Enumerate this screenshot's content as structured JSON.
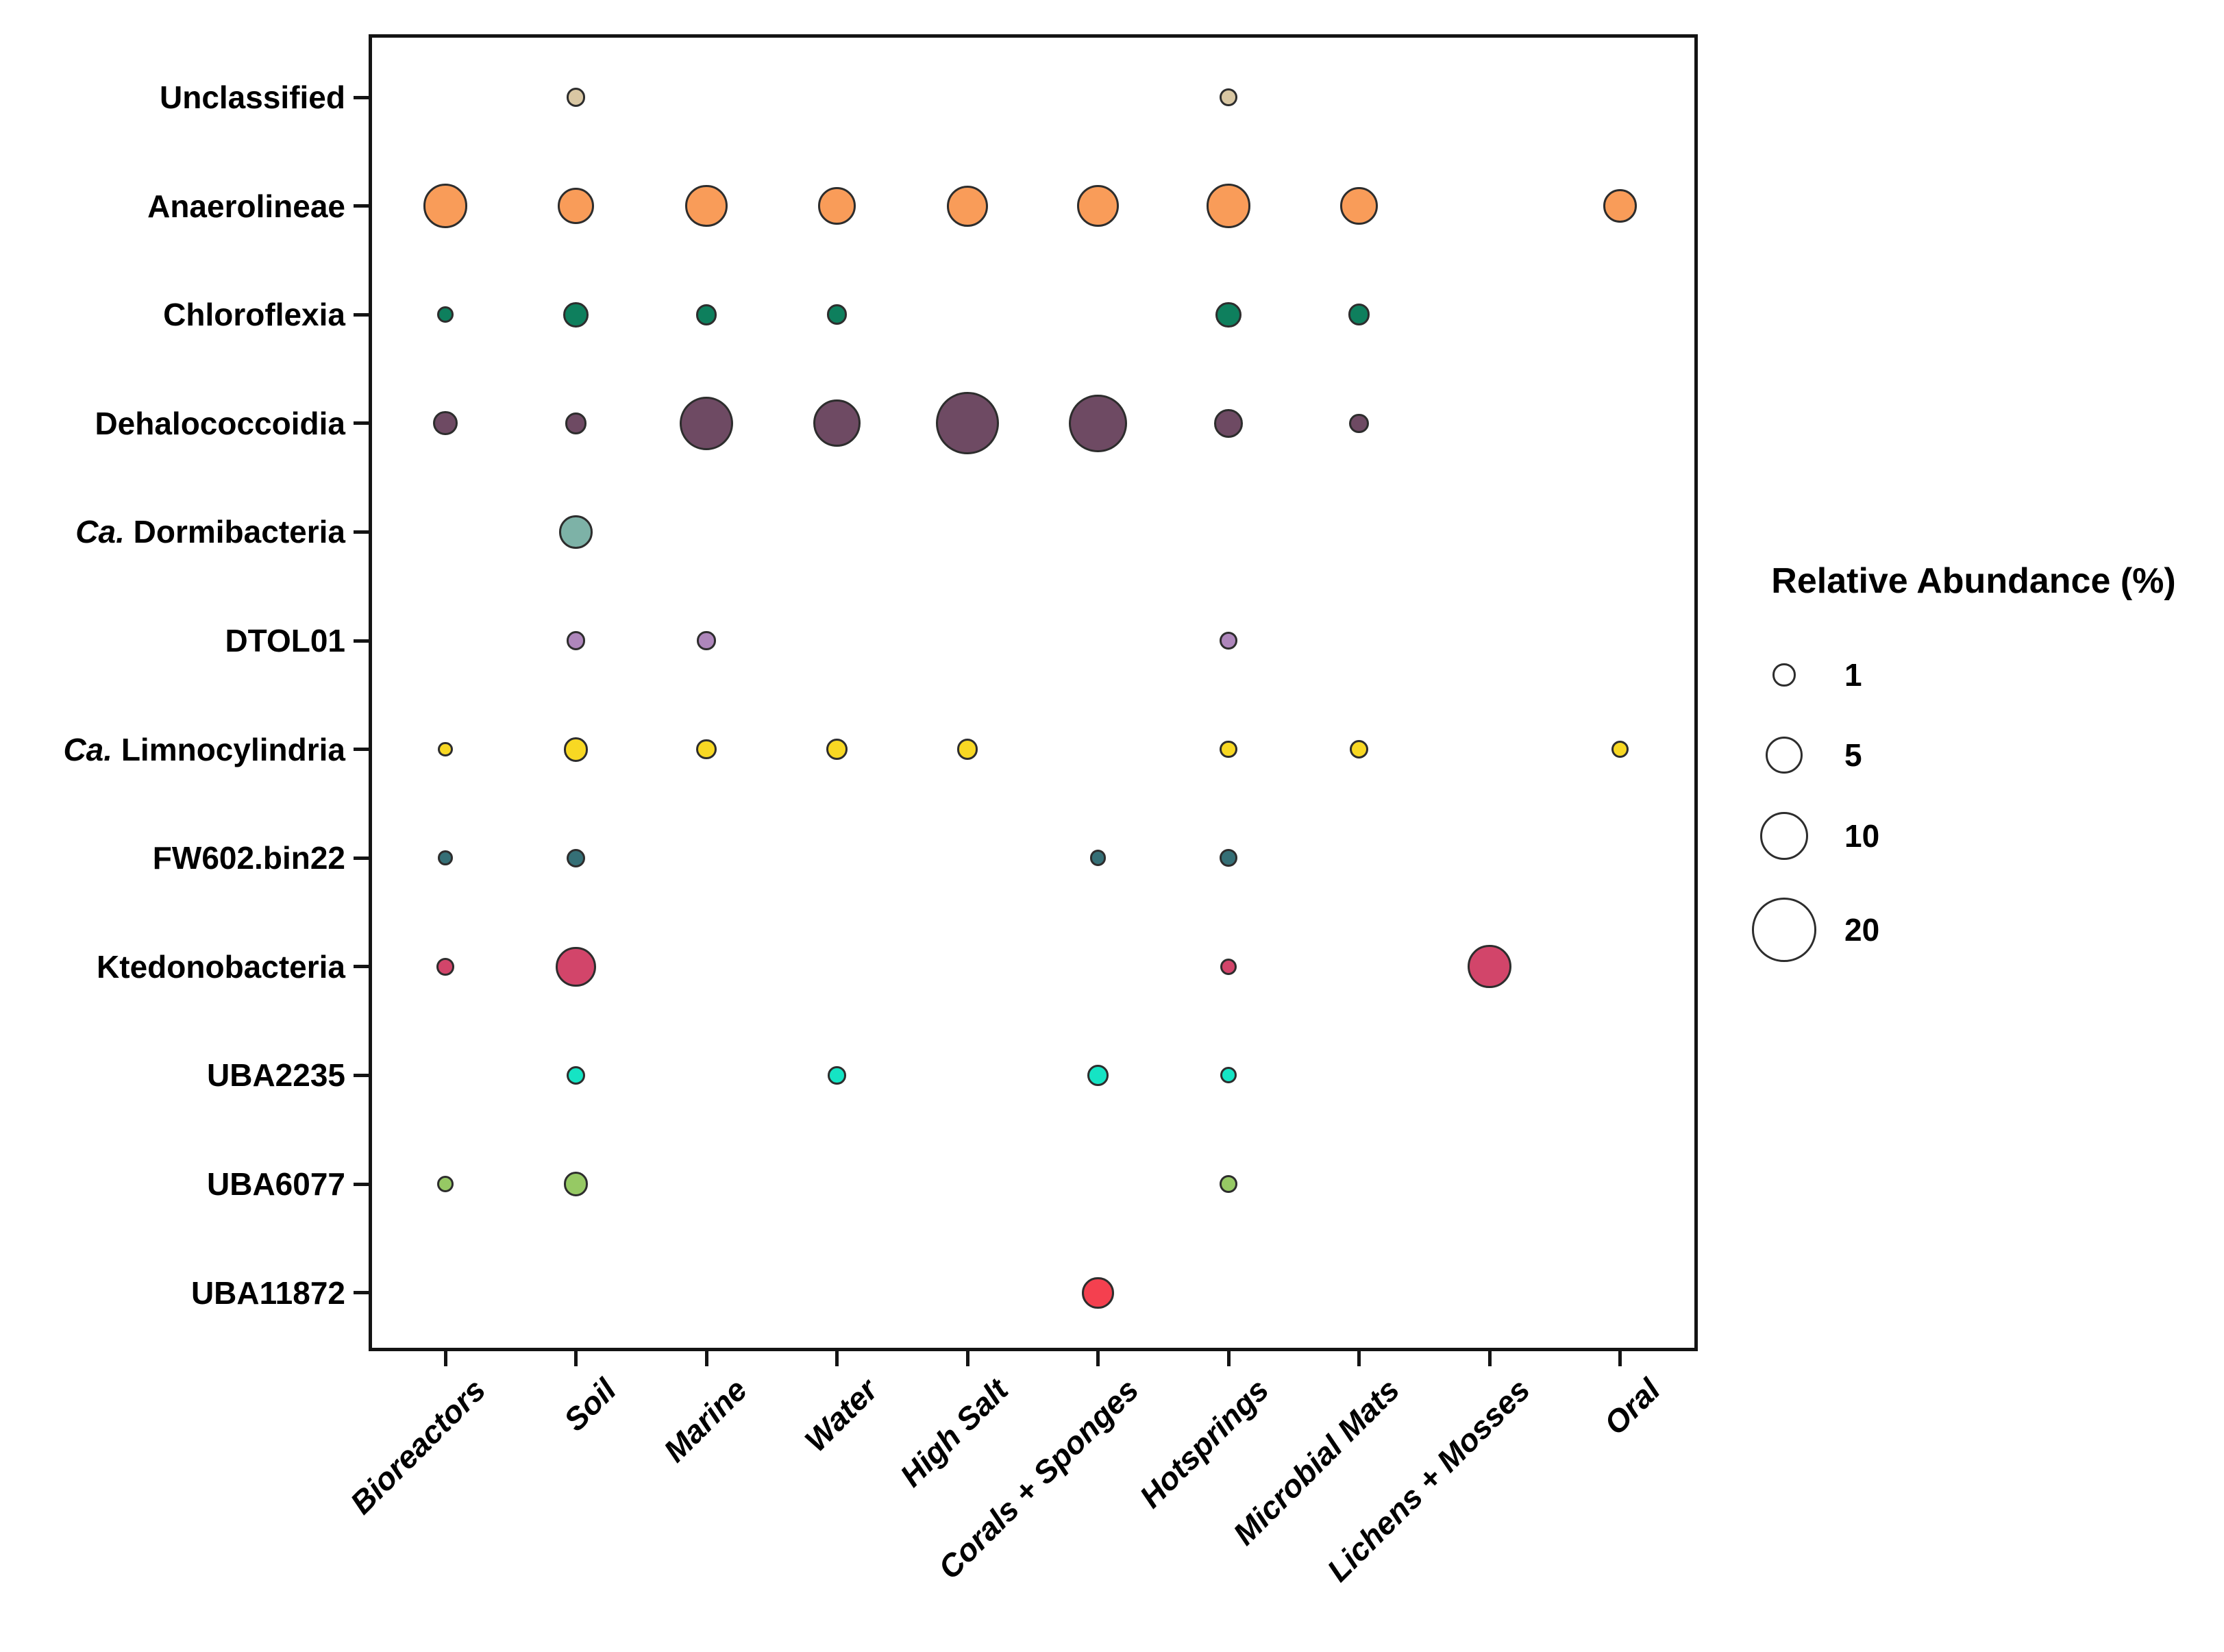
{
  "chart_data": {
    "type": "scatter",
    "subtype": "bubble-matrix",
    "title": "",
    "xlabel": "",
    "ylabel": "",
    "grid": false,
    "background": "#ffffff",
    "axis_color": "#141414",
    "bubble_stroke_color": "#2d2d2d",
    "legend": {
      "title": "Relative Abundance (%)",
      "position": "right",
      "sizes": [
        1,
        5,
        10,
        20
      ],
      "size_to_diameter_px": "diameter = 16.3 + 17.2 * sqrt(value)"
    },
    "x_categories": [
      "Bioreactors",
      "Soil",
      "Marine",
      "Water",
      "High Salt",
      "Corals + Sponges",
      "Hotsprings",
      "Microbial Mats",
      "Lichens + Mosses",
      "Oral"
    ],
    "rows": [
      {
        "italic": "",
        "label": "Unclassified",
        "color": "#D9C7A3",
        "values": [
          null,
          0.4,
          null,
          null,
          null,
          null,
          0.3,
          null,
          null,
          null
        ]
      },
      {
        "italic": "",
        "label": "Anaerolineae",
        "color": "#F99C59",
        "values": [
          8,
          4.5,
          7,
          5,
          6.5,
          7,
          8,
          5,
          null,
          3.5
        ]
      },
      {
        "italic": "",
        "label": "Chloroflexia",
        "color": "#0E7F5D",
        "values": [
          0.2,
          1.4,
          0.7,
          0.6,
          null,
          null,
          1.5,
          0.8,
          null,
          null
        ]
      },
      {
        "italic": "",
        "label": "Dehalococcoidia",
        "color": "#6E4A63",
        "values": [
          1.2,
          0.8,
          13,
          9.5,
          19,
          15.5,
          2.2,
          0.5,
          null,
          null
        ]
      },
      {
        "italic": "Ca.",
        "label": " Dormibacteria",
        "color": "#7DB2A7",
        "values": [
          null,
          3.5,
          null,
          null,
          null,
          null,
          null,
          null,
          null,
          null
        ]
      },
      {
        "italic": "",
        "label": "DTOL01",
        "color": "#AE86BB",
        "values": [
          null,
          0.4,
          0.4,
          null,
          null,
          null,
          0.3,
          null,
          null,
          null
        ]
      },
      {
        "italic": "Ca.",
        "label": " Limnocylindria",
        "color": "#F8D823",
        "values": [
          0.1,
          1.3,
          0.6,
          0.7,
          0.7,
          null,
          0.3,
          0.4,
          null,
          0.3
        ]
      },
      {
        "italic": "",
        "label": "FW602.bin22",
        "color": "#356F76",
        "values": [
          0.1,
          0.4,
          null,
          null,
          null,
          0.2,
          0.3,
          null,
          null,
          null
        ]
      },
      {
        "italic": "",
        "label": "Ktedonobacteria",
        "color": "#D2456A",
        "values": [
          0.3,
          6,
          null,
          null,
          null,
          null,
          0.2,
          null,
          7.5,
          null
        ]
      },
      {
        "italic": "",
        "label": "UBA2235",
        "color": "#15E4C4",
        "values": [
          null,
          0.4,
          null,
          0.35,
          null,
          0.7,
          0.2,
          null,
          null,
          null
        ]
      },
      {
        "italic": "",
        "label": "UBA6077",
        "color": "#96C964",
        "values": [
          0.2,
          1.3,
          null,
          null,
          null,
          null,
          0.3,
          null,
          null,
          null
        ]
      },
      {
        "italic": "",
        "label": "UBA11872",
        "color": "#F4404F",
        "values": [
          null,
          null,
          null,
          null,
          null,
          3,
          null,
          null,
          null,
          null
        ]
      }
    ]
  }
}
